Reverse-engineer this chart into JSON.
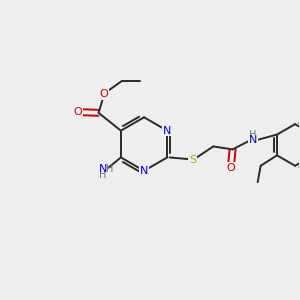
{
  "bg_color": "#eeeeee",
  "bond_color": "#2a2a2a",
  "N_color": "#0000dd",
  "O_color": "#cc0000",
  "S_color": "#bbaa00",
  "H_color": "#707070",
  "line_width": 1.4,
  "figsize": [
    3.0,
    3.0
  ],
  "dpi": 100,
  "xlim": [
    0,
    10
  ],
  "ylim": [
    0,
    10
  ]
}
